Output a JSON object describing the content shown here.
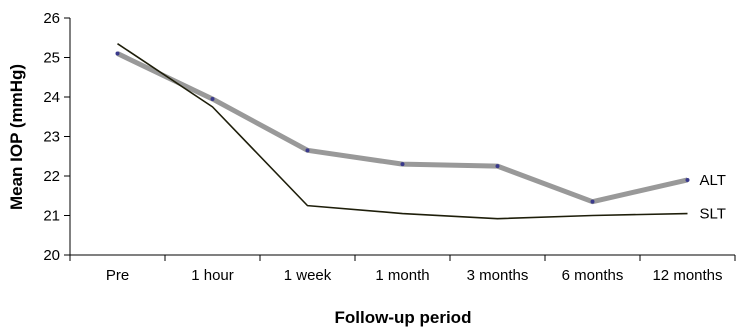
{
  "chart_data": {
    "type": "line",
    "title": "",
    "xlabel": "Follow-up period",
    "ylabel": "Mean IOP (mmHg)",
    "categories": [
      "Pre",
      "1 hour",
      "1 week",
      "1 month",
      "3 months",
      "6 months",
      "12 months"
    ],
    "ylim": [
      20,
      26
    ],
    "yticks": [
      "20",
      "21",
      "22",
      "23",
      "24",
      "25",
      "26"
    ],
    "grid": false,
    "series": [
      {
        "name": "ALT",
        "values": [
          25.1,
          23.95,
          22.65,
          22.3,
          22.25,
          21.35,
          21.9
        ],
        "color": "#999999",
        "marker_color": "#3a3a8c"
      },
      {
        "name": "SLT",
        "values": [
          25.35,
          23.75,
          21.25,
          21.05,
          20.92,
          21.0,
          21.05
        ],
        "color": "#1e1e0a"
      }
    ]
  }
}
